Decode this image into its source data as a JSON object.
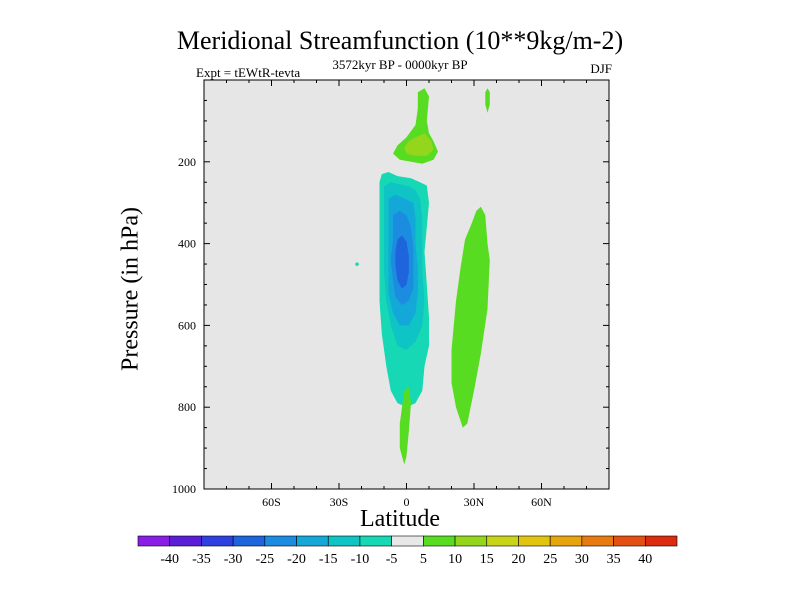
{
  "chart_data": {
    "type": "heatmap",
    "title": "Meridional Streamfunction (10**9kg/m-2)",
    "subtitle_left": "Expt = tEWtR-tevta",
    "subtitle_center": "3572kyr BP - 0000kyr BP",
    "subtitle_right": "DJF",
    "xlabel": "Latitude",
    "ylabel": "Pressure (in hPa)",
    "xlim": [
      -90,
      90
    ],
    "ylim": [
      0,
      1000
    ],
    "y_inverted": true,
    "xticks": [
      {
        "value": -60,
        "label": "60S"
      },
      {
        "value": -30,
        "label": "30S"
      },
      {
        "value": 0,
        "label": "0"
      },
      {
        "value": 30,
        "label": "30N"
      },
      {
        "value": 60,
        "label": "60N"
      }
    ],
    "yticks": [
      {
        "value": 200,
        "label": "200"
      },
      {
        "value": 400,
        "label": "400"
      },
      {
        "value": 600,
        "label": "600"
      },
      {
        "value": 800,
        "label": "800"
      },
      {
        "value": 1000,
        "label": "1000"
      }
    ],
    "colorbar": {
      "levels": [
        "-40",
        "-35",
        "-30",
        "-25",
        "-20",
        "-15",
        "-10",
        "-5",
        "5",
        "10",
        "15",
        "20",
        "25",
        "30",
        "35",
        "40"
      ],
      "colors": [
        "#8a1ee6",
        "#5a1ed6",
        "#3040e0",
        "#1e64dc",
        "#1c8ce0",
        "#14a8d8",
        "#0ec4c4",
        "#16d8b4",
        "#e8e8e8",
        "#58dc22",
        "#94d61c",
        "#c8d418",
        "#e0c410",
        "#e6a40e",
        "#e87a12",
        "#e45014",
        "#dc2c10"
      ]
    },
    "regions": [
      {
        "name": "negative-cell-outer",
        "level": -5,
        "color": "#16d8b4",
        "points": [
          [
            -11,
            230
          ],
          [
            -8,
            225
          ],
          [
            -4,
            235
          ],
          [
            2,
            240
          ],
          [
            6,
            250
          ],
          [
            9,
            258
          ],
          [
            10,
            300
          ],
          [
            9,
            360
          ],
          [
            8,
            420
          ],
          [
            9,
            500
          ],
          [
            10,
            580
          ],
          [
            10,
            650
          ],
          [
            8,
            700
          ],
          [
            7,
            760
          ],
          [
            4,
            790
          ],
          [
            0,
            800
          ],
          [
            -4,
            790
          ],
          [
            -7,
            760
          ],
          [
            -9,
            700
          ],
          [
            -11,
            620
          ],
          [
            -12,
            540
          ],
          [
            -12,
            460
          ],
          [
            -12,
            380
          ],
          [
            -12,
            300
          ],
          [
            -12,
            250
          ]
        ]
      },
      {
        "name": "negative-cell-10",
        "level": -10,
        "color": "#0ec4c4",
        "points": [
          [
            -10,
            260
          ],
          [
            -7,
            250
          ],
          [
            -3,
            255
          ],
          [
            1,
            260
          ],
          [
            4,
            270
          ],
          [
            6,
            290
          ],
          [
            7,
            340
          ],
          [
            7,
            400
          ],
          [
            7,
            470
          ],
          [
            8,
            540
          ],
          [
            7,
            600
          ],
          [
            4,
            640
          ],
          [
            0,
            660
          ],
          [
            -4,
            650
          ],
          [
            -7,
            600
          ],
          [
            -9,
            540
          ],
          [
            -10,
            470
          ],
          [
            -10,
            400
          ],
          [
            -10,
            330
          ]
        ]
      },
      {
        "name": "negative-cell-15",
        "level": -15,
        "color": "#14a8d8",
        "points": [
          [
            -8,
            290
          ],
          [
            -5,
            280
          ],
          [
            -1,
            290
          ],
          [
            3,
            300
          ],
          [
            4,
            340
          ],
          [
            4,
            400
          ],
          [
            5,
            460
          ],
          [
            5,
            520
          ],
          [
            4,
            570
          ],
          [
            1,
            600
          ],
          [
            -3,
            600
          ],
          [
            -6,
            570
          ],
          [
            -8,
            520
          ],
          [
            -8,
            460
          ],
          [
            -8,
            400
          ],
          [
            -8,
            340
          ]
        ]
      },
      {
        "name": "negative-cell-20",
        "level": -20,
        "color": "#1c8ce0",
        "points": [
          [
            -6,
            330
          ],
          [
            -3,
            320
          ],
          [
            0,
            330
          ],
          [
            2,
            360
          ],
          [
            3,
            410
          ],
          [
            3,
            460
          ],
          [
            3,
            510
          ],
          [
            1,
            540
          ],
          [
            -2,
            550
          ],
          [
            -5,
            530
          ],
          [
            -6,
            490
          ],
          [
            -7,
            440
          ],
          [
            -6,
            390
          ]
        ]
      },
      {
        "name": "negative-cell-25",
        "level": -25,
        "color": "#1e64dc",
        "points": [
          [
            -4,
            390
          ],
          [
            -2,
            380
          ],
          [
            0,
            395
          ],
          [
            1,
            430
          ],
          [
            1,
            470
          ],
          [
            0,
            500
          ],
          [
            -2,
            510
          ],
          [
            -4,
            490
          ],
          [
            -5,
            450
          ],
          [
            -5,
            420
          ]
        ]
      },
      {
        "name": "upper-positive-cell",
        "level": 5,
        "color": "#58dc22",
        "points": [
          [
            5,
            30
          ],
          [
            8,
            20
          ],
          [
            10,
            40
          ],
          [
            9,
            100
          ],
          [
            10,
            130
          ],
          [
            12,
            150
          ],
          [
            14,
            175
          ],
          [
            12,
            195
          ],
          [
            7,
            205
          ],
          [
            2,
            200
          ],
          [
            -3,
            195
          ],
          [
            -6,
            180
          ],
          [
            -4,
            160
          ],
          [
            0,
            140
          ],
          [
            4,
            110
          ],
          [
            5,
            70
          ]
        ]
      },
      {
        "name": "upper-positive-core",
        "level": 10,
        "color": "#94d61c",
        "points": [
          [
            4,
            140
          ],
          [
            8,
            130
          ],
          [
            11,
            150
          ],
          [
            12,
            170
          ],
          [
            9,
            185
          ],
          [
            4,
            185
          ],
          [
            0,
            180
          ],
          [
            -1,
            165
          ],
          [
            1,
            150
          ]
        ]
      },
      {
        "name": "upper-right-sliver",
        "level": 5,
        "color": "#58dc22",
        "points": [
          [
            36,
            20
          ],
          [
            37,
            30
          ],
          [
            37,
            60
          ],
          [
            36,
            80
          ],
          [
            35,
            60
          ],
          [
            35,
            30
          ]
        ]
      },
      {
        "name": "right-positive-cell",
        "level": 5,
        "color": "#58dc22",
        "points": [
          [
            33,
            310
          ],
          [
            35,
            330
          ],
          [
            36,
            400
          ],
          [
            37,
            440
          ],
          [
            36,
            560
          ],
          [
            33,
            670
          ],
          [
            30,
            760
          ],
          [
            27,
            840
          ],
          [
            25,
            850
          ],
          [
            22,
            800
          ],
          [
            20,
            740
          ],
          [
            20,
            660
          ],
          [
            22,
            540
          ],
          [
            24,
            460
          ],
          [
            26,
            390
          ],
          [
            29,
            350
          ],
          [
            31,
            320
          ]
        ]
      },
      {
        "name": "lower-positive-sliver",
        "level": 5,
        "color": "#58dc22",
        "points": [
          [
            -1,
            760
          ],
          [
            1,
            750
          ],
          [
            2,
            790
          ],
          [
            1,
            860
          ],
          [
            0,
            920
          ],
          [
            -1,
            940
          ],
          [
            -3,
            900
          ],
          [
            -3,
            840
          ],
          [
            -2,
            800
          ]
        ]
      },
      {
        "name": "isolated-speck",
        "level": -5,
        "color": "#16d8b4",
        "points": [
          [
            -22,
            445
          ],
          [
            -21,
            450
          ],
          [
            -22,
            456
          ],
          [
            -23,
            450
          ]
        ]
      }
    ]
  }
}
